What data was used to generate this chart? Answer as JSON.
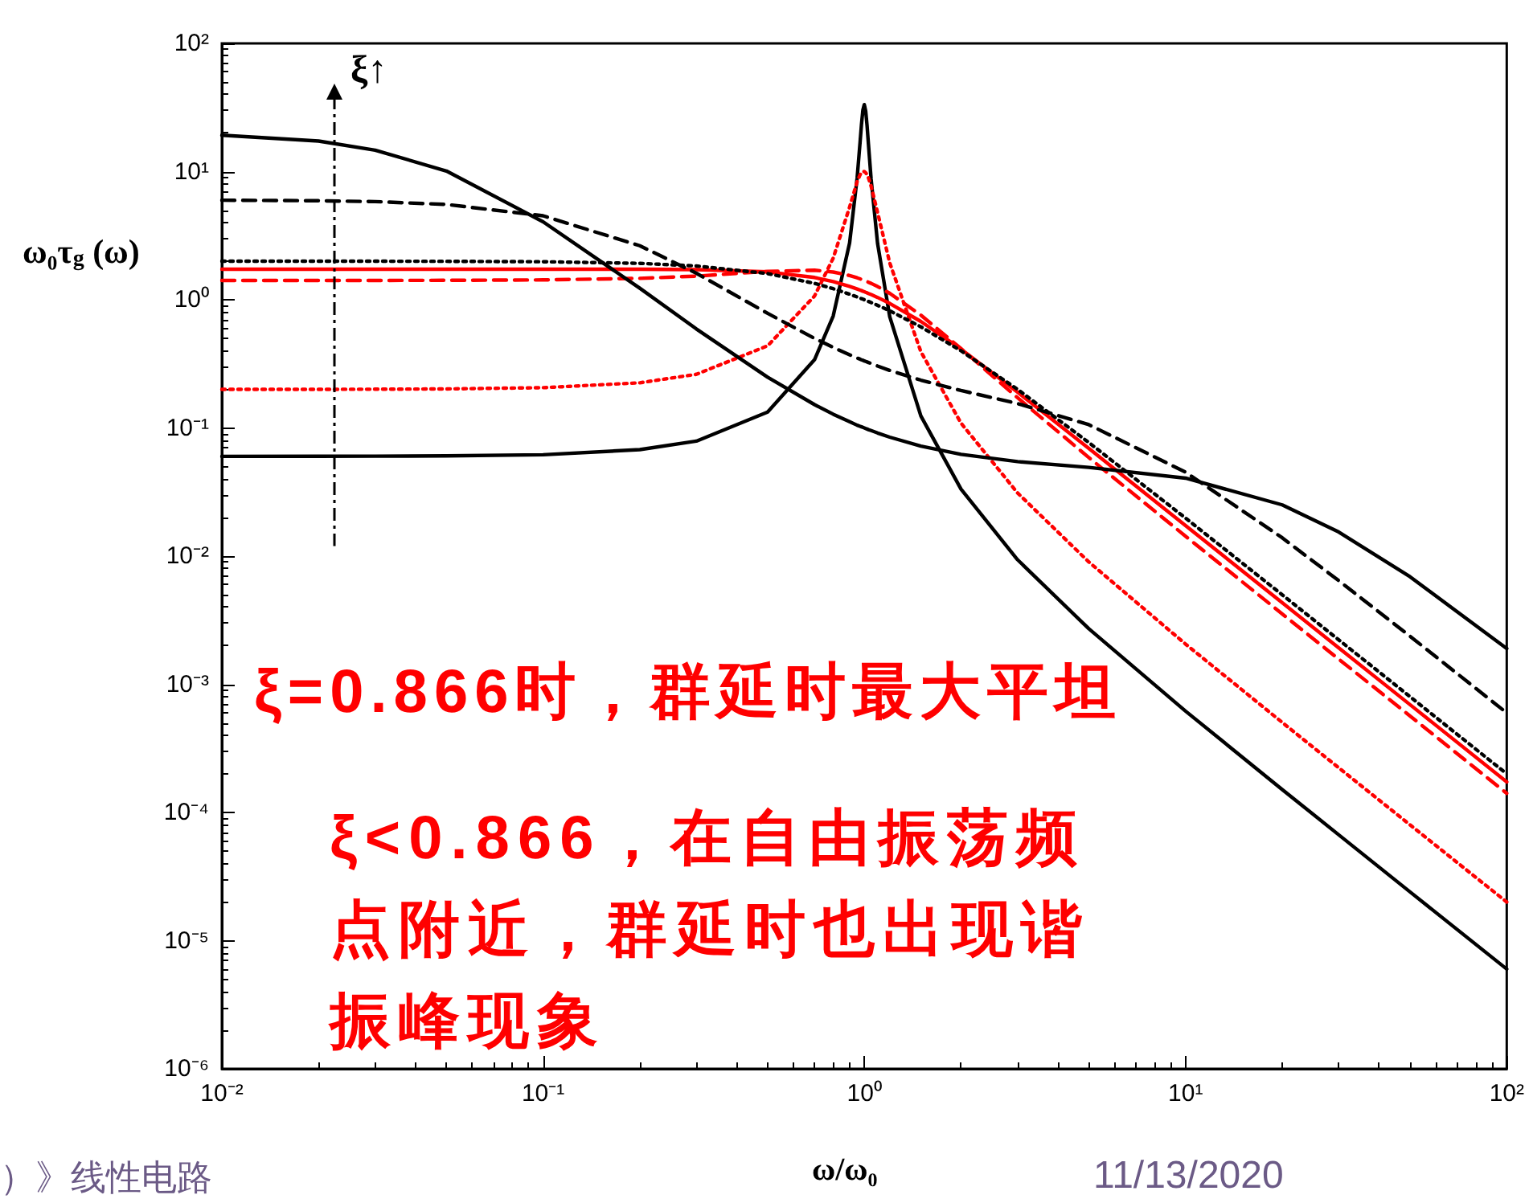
{
  "chart_data": {
    "type": "line",
    "xlabel": "ω/ω₀",
    "ylabel": "ω₀τ$_{g}$ (ω)",
    "log": "xy",
    "marker": "none",
    "xlim": [
      0.01,
      100
    ],
    "ylim": [
      1e-06,
      100
    ],
    "xticks": [
      {
        "value": 0.01,
        "label": "10⁻²"
      },
      {
        "value": 0.1,
        "label": "10⁻¹"
      },
      {
        "value": 1,
        "label": "10⁰"
      },
      {
        "value": 10,
        "label": "10¹"
      },
      {
        "value": 100,
        "label": "10²"
      }
    ],
    "yticks": [
      {
        "value": 1e-06,
        "label": "10⁻⁶"
      },
      {
        "value": 1e-05,
        "label": "10⁻⁵"
      },
      {
        "value": 0.0001,
        "label": "10⁻⁴"
      },
      {
        "value": 0.001,
        "label": "10⁻³"
      },
      {
        "value": 0.01,
        "label": "10⁻²"
      },
      {
        "value": 0.1,
        "label": "10⁻¹"
      },
      {
        "value": 1,
        "label": "10⁰"
      },
      {
        "value": 10,
        "label": "10¹"
      },
      {
        "value": 100,
        "label": "10²"
      }
    ],
    "x": [
      0.01,
      0.02,
      0.03,
      0.05,
      0.1,
      0.2,
      0.3,
      0.5,
      0.7,
      0.8,
      0.9,
      0.95,
      0.97,
      0.98,
      0.99,
      1,
      1.01,
      1.02,
      1.03,
      1.05,
      1.1,
      1.2,
      1.5,
      2,
      3,
      5,
      10,
      20,
      30,
      50,
      100
    ],
    "series": [
      {
        "color": "#000000",
        "line_style": "solid",
        "values": [
          0.06,
          0.0601,
          0.0602,
          0.0605,
          0.0618,
          0.0677,
          0.0789,
          0.133,
          0.341,
          0.746,
          2.78,
          8.95,
          16.9,
          23.4,
          30.3,
          33.3,
          29.7,
          22.8,
          16.4,
          8.72,
          2.74,
          0.737,
          0.124,
          0.0333,
          0.00937,
          0.00271,
          0.000618,
          0.000151,
          6.69e-05,
          2.4e-05,
          6e-06
        ]
      },
      {
        "color": "#ff0000",
        "line_style": "dotted",
        "values": [
          0.2,
          0.2,
          0.2005,
          0.2015,
          0.206,
          0.225,
          0.262,
          0.437,
          1.07,
          2.11,
          5.29,
          8.34,
          9.44,
          9.81,
          10,
          10,
          9.8,
          9.44,
          8.93,
          7.7,
          4.78,
          1.94,
          0.393,
          0.109,
          0.0311,
          0.009,
          0.00206,
          0.000504,
          0.000223,
          8e-05,
          2e-05
        ]
      },
      {
        "color": "#ff0000",
        "line_style": "dashed",
        "values": [
          1.414,
          1.415,
          1.415,
          1.418,
          1.428,
          1.468,
          1.529,
          1.664,
          1.699,
          1.645,
          1.545,
          1.483,
          1.456,
          1.442,
          1.428,
          1.414,
          1.4,
          1.386,
          1.371,
          1.342,
          1.268,
          1.123,
          0.758,
          0.416,
          0.172,
          0.0587,
          0.0143,
          0.00354,
          0.00157,
          0.000566,
          0.000141
        ]
      },
      {
        "color": "#ff0000",
        "line_style": "solid",
        "values": [
          1.732,
          1.732,
          1.732,
          1.732,
          1.732,
          1.729,
          1.719,
          1.65,
          1.492,
          1.386,
          1.271,
          1.213,
          1.19,
          1.178,
          1.166,
          1.155,
          1.143,
          1.132,
          1.12,
          1.098,
          1.042,
          0.936,
          0.677,
          0.412,
          0.19,
          0.0692,
          0.0173,
          0.00433,
          0.00192,
          0.000693,
          0.000173
        ]
      },
      {
        "color": "#000000",
        "line_style": "dotted",
        "values": [
          2,
          1.999,
          1.998,
          1.995,
          1.98,
          1.923,
          1.835,
          1.6,
          1.342,
          1.22,
          1.105,
          1.051,
          1.031,
          1.02,
          1.01,
          1,
          0.99,
          0.98,
          0.97,
          0.951,
          0.905,
          0.82,
          0.615,
          0.4,
          0.2,
          0.0769,
          0.0198,
          0.00499,
          0.00222,
          0.0008,
          0.0002
        ]
      },
      {
        "color": "#000000",
        "line_style": "dashed",
        "values": [
          5.98,
          5.92,
          5.83,
          5.54,
          4.52,
          2.64,
          1.61,
          0.784,
          0.499,
          0.425,
          0.372,
          0.351,
          0.344,
          0.34,
          0.337,
          0.333,
          0.33,
          0.327,
          0.324,
          0.318,
          0.304,
          0.281,
          0.236,
          0.196,
          0.155,
          0.106,
          0.0452,
          0.0139,
          0.00643,
          0.00237,
          0.000598
        ]
      },
      {
        "color": "#000000",
        "line_style": "solid",
        "values": [
          19.2,
          17.3,
          14.7,
          10.1,
          4.06,
          1.23,
          0.592,
          0.249,
          0.152,
          0.128,
          0.112,
          0.105,
          0.103,
          0.102,
          0.101,
          0.1,
          0.099,
          0.098,
          0.097,
          0.0954,
          0.0913,
          0.0847,
          0.0721,
          0.0622,
          0.0546,
          0.0492,
          0.0406,
          0.0251,
          0.0154,
          0.0069,
          0.0019
        ]
      }
    ],
    "annotations": [
      "ξ↑",
      "ξ=0.866时，群延时最大平坦",
      "ξ<0.866，在自由振荡频点附近，群延时也出现谐振峰现象",
      "）》线性电路",
      "11/13/2020"
    ]
  }
}
